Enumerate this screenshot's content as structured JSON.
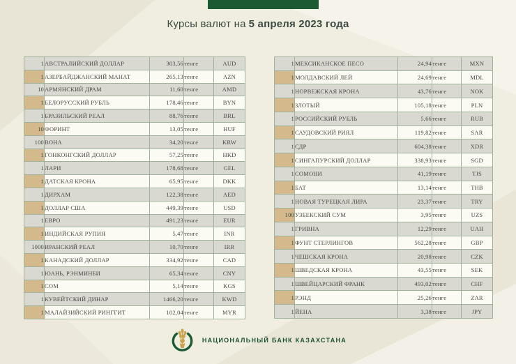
{
  "title": {
    "prefix": "Курсы валют на",
    "date": "5 апреля 2023 года"
  },
  "colors": {
    "background": "#f0eee1",
    "header_tab_green": "#1c5a33",
    "table_border_green": "#9fb29b",
    "row_gray": "#d9d8d1",
    "row_light": "#fbfaf3",
    "qty_cell_tan": "#d3b98b",
    "bank_text_green": "#1d5033",
    "wheat_gold": "#c9a24b"
  },
  "tables": {
    "left": {
      "rows": [
        {
          "qty": "1",
          "name": "АВСТРАЛИЙСКИЙ ДОЛЛАР",
          "rate": "303,56",
          "unit": "тенге",
          "code": "AUD"
        },
        {
          "qty": "1",
          "name": "АЗЕРБАЙДЖАНСКИЙ МАНАТ",
          "rate": "265,13",
          "unit": "тенге",
          "code": "AZN"
        },
        {
          "qty": "10",
          "name": "АРМЯНСКИЙ  ДРАМ",
          "rate": "11,60",
          "unit": "тенге",
          "code": "AMD"
        },
        {
          "qty": "1",
          "name": "БЕЛОРУССКИЙ РУБЛЬ",
          "rate": "178,46",
          "unit": "тенге",
          "code": "BYN"
        },
        {
          "qty": "1",
          "name": "БРАЗИЛЬСКИЙ РЕАЛ",
          "rate": "88,76",
          "unit": "тенге",
          "code": "BRL"
        },
        {
          "qty": "10",
          "name": "ФОРИНТ",
          "rate": "13,05",
          "unit": "тенге",
          "code": "HUF"
        },
        {
          "qty": "100",
          "name": "ВОНА",
          "rate": "34,20",
          "unit": "тенге",
          "code": "KRW"
        },
        {
          "qty": "1",
          "name": "ГОНКОНГСКИЙ ДОЛЛАР",
          "rate": "57,25",
          "unit": "тенге",
          "code": "HKD"
        },
        {
          "qty": "1",
          "name": "ЛАРИ",
          "rate": "178,68",
          "unit": "тенге",
          "code": "GEL"
        },
        {
          "qty": "1",
          "name": "ДАТСКАЯ КРОНА",
          "rate": "65,95",
          "unit": "тенге",
          "code": "DKK"
        },
        {
          "qty": "1",
          "name": "ДИРХАМ",
          "rate": "122,38",
          "unit": "тенге",
          "code": "AED"
        },
        {
          "qty": "1",
          "name": "ДОЛЛАР США",
          "rate": "449,39",
          "unit": "тенге",
          "code": "USD"
        },
        {
          "qty": "1",
          "name": "ЕВРО",
          "rate": "491,23",
          "unit": "тенге",
          "code": "EUR"
        },
        {
          "qty": "1",
          "name": "ИНДИЙСКАЯ РУПИЯ",
          "rate": "5,47",
          "unit": "тенге",
          "code": "INR"
        },
        {
          "qty": "1000",
          "name": "ИРАНСКИЙ РЕАЛ",
          "rate": "10,70",
          "unit": "тенге",
          "code": "IRR"
        },
        {
          "qty": "1",
          "name": "КАНАДСКИЙ ДОЛЛАР",
          "rate": "334,92",
          "unit": "тенге",
          "code": "CAD"
        },
        {
          "qty": "1",
          "name": "ЮАНЬ, РЭНМИНБИ",
          "rate": "65,34",
          "unit": "тенге",
          "code": "CNY"
        },
        {
          "qty": "1",
          "name": "СОМ",
          "rate": "5,14",
          "unit": "тенге",
          "code": "KGS"
        },
        {
          "qty": "1",
          "name": "КУВЕЙТСКИЙ ДИНАР",
          "rate": "1466,20",
          "unit": "тенге",
          "code": "KWD"
        },
        {
          "qty": "1",
          "name": "МАЛАЙЗИЙСКИЙ РИНГГИТ",
          "rate": "102,04",
          "unit": "тенге",
          "code": "MYR"
        }
      ]
    },
    "right": {
      "rows": [
        {
          "qty": "1",
          "name": "МЕКСИКАНСКОЕ ПЕСО",
          "rate": "24,94",
          "unit": "тенге",
          "code": "MXN"
        },
        {
          "qty": "1",
          "name": "МОЛДАВСКИЙ ЛЕЙ",
          "rate": "24,69",
          "unit": "тенге",
          "code": "MDL"
        },
        {
          "qty": "1",
          "name": "НОРВЕЖСКАЯ КРОНА",
          "rate": "43,76",
          "unit": "тенге",
          "code": "NOK"
        },
        {
          "qty": "1",
          "name": "ЗЛОТЫЙ",
          "rate": "105,18",
          "unit": "тенге",
          "code": "PLN"
        },
        {
          "qty": "1",
          "name": "РОССИЙСКИЙ РУБЛЬ",
          "rate": "5,66",
          "unit": "тенге",
          "code": "RUB"
        },
        {
          "qty": "1",
          "name": "САУДОВСКИЙ РИЯЛ",
          "rate": "119,82",
          "unit": "тенге",
          "code": "SAR"
        },
        {
          "qty": "1",
          "name": "СДР",
          "rate": "604,38",
          "unit": "тенге",
          "code": "XDR"
        },
        {
          "qty": "1",
          "name": "СИНГАПУРСКИЙ ДОЛЛАР",
          "rate": "338,93",
          "unit": "тенге",
          "code": "SGD"
        },
        {
          "qty": "1",
          "name": "СОМОНИ",
          "rate": "41,19",
          "unit": "тенге",
          "code": "TJS"
        },
        {
          "qty": "1",
          "name": "БАТ",
          "rate": "13,14",
          "unit": "тенге",
          "code": "THB"
        },
        {
          "qty": "1",
          "name": "НОВАЯ ТУРЕЦКАЯ ЛИРА",
          "rate": "23,37",
          "unit": "тенге",
          "code": "TRY"
        },
        {
          "qty": "100",
          "name": "УЗБЕКСКИЙ СУМ",
          "rate": "3,95",
          "unit": "тенге",
          "code": "UZS"
        },
        {
          "qty": "1",
          "name": "ГРИВНА",
          "rate": "12,29",
          "unit": "тенге",
          "code": "UAH"
        },
        {
          "qty": "1",
          "name": "ФУНТ СТЕРЛИНГОВ",
          "rate": "562,28",
          "unit": "тенге",
          "code": "GBP"
        },
        {
          "qty": "1",
          "name": "ЧЕШСКАЯ КРОНА",
          "rate": "20,98",
          "unit": "тенге",
          "code": "CZK"
        },
        {
          "qty": "1",
          "name": "ШВЕДСКАЯ КРОНА",
          "rate": "43,55",
          "unit": "тенге",
          "code": "SEK"
        },
        {
          "qty": "1",
          "name": "ШВЕЙЦАРСКИЙ ФРАНК",
          "rate": "493,02",
          "unit": "тенге",
          "code": "CHF"
        },
        {
          "qty": "1",
          "name": "РЭНД",
          "rate": "25,26",
          "unit": "тенге",
          "code": "ZAR"
        },
        {
          "qty": "1",
          "name": "ЙЕНА",
          "rate": "3,38",
          "unit": "тенге",
          "code": "JPY"
        }
      ]
    }
  },
  "footer": {
    "bank_name": "НАЦИОНАЛЬНЫЙ БАНК КАЗАХСТАНА"
  }
}
